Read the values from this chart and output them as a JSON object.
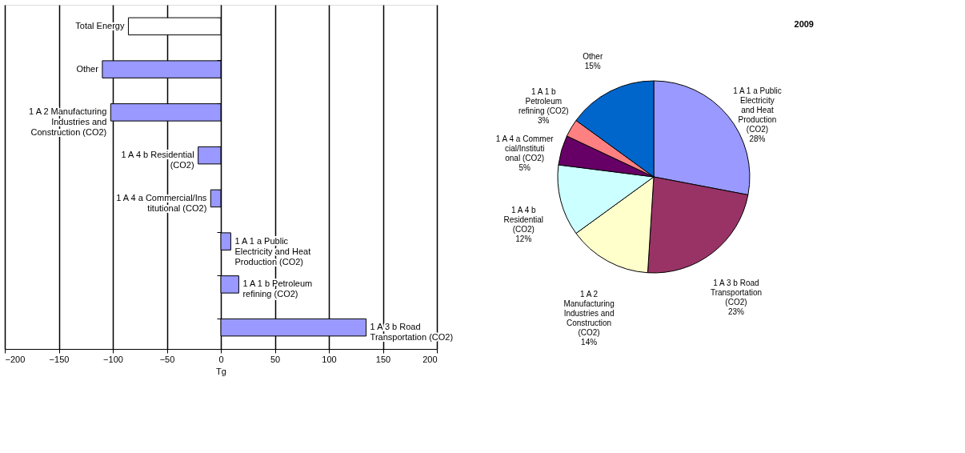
{
  "chart_data": [
    {
      "type": "bar",
      "orientation": "horizontal",
      "xlabel": "Tg",
      "categories": [
        "Total Energy",
        "Other",
        "1 A 2 Manufacturing Industries and Construction (CO2)",
        "1 A 4 b Residential (CO2)",
        "1 A 4 a Commercial/Institutional (CO2)",
        "1 A 1 a Public Electricity and Heat Production (CO2)",
        "1 A 1 b Petroleum refining (CO2)",
        "1 A 3 b Road Transportation (CO2)"
      ],
      "values": [
        -85.6,
        -109.7,
        -102,
        -21,
        -9.4,
        9.2,
        16.6,
        134.5
      ],
      "colors": [
        "#ffffff",
        "#9999ff",
        "#9999ff",
        "#9999ff",
        "#9999ff",
        "#9999ff",
        "#9999ff",
        "#9999ff"
      ],
      "xlim": [
        -200,
        200
      ],
      "xticks": [
        -200,
        -150,
        -100,
        -50,
        0,
        50,
        100,
        150,
        200
      ],
      "grid": "x"
    },
    {
      "type": "pie",
      "title": "2009",
      "categories": [
        "1 A 1 a Public Electricity and Heat Production (CO2)",
        "1 A 3 b Road Transportation (CO2)",
        "1 A 2 Manufacturing Industries and Construction (CO2)",
        "1 A 4 b Residential (CO2)",
        "1 A 4 a Commercial/Institutional (CO2)",
        "1 A 1 b Petroleum refining (CO2)",
        "Other"
      ],
      "values": [
        28,
        23,
        14,
        12,
        5,
        3,
        15
      ],
      "value_labels": [
        "28%",
        "23%",
        "14%",
        "12%",
        "5%",
        "3%",
        "15%"
      ],
      "colors": [
        "#9999ff",
        "#993366",
        "#ffffcc",
        "#ccffff",
        "#660066",
        "#ff8080",
        "#0066cc"
      ]
    }
  ]
}
